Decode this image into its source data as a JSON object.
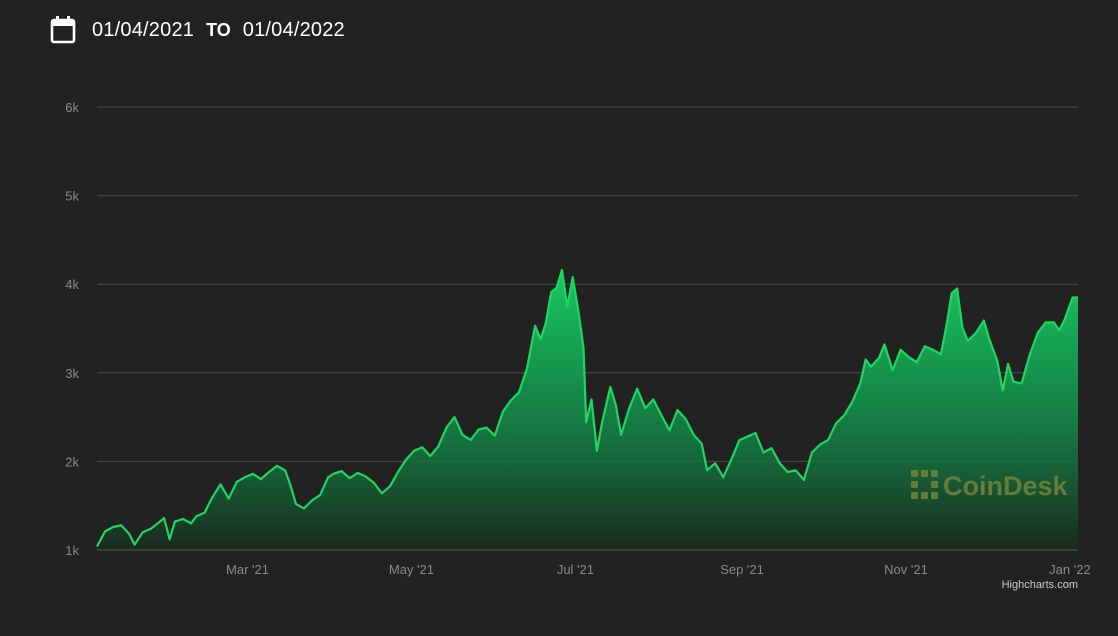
{
  "date_range": {
    "start": "01/04/2021",
    "to_label": "TO",
    "end": "01/04/2022"
  },
  "icons": {
    "calendar": "calendar-icon",
    "watermark_logo": "coindesk-logo-icon"
  },
  "watermark": {
    "text": "CoinDesk"
  },
  "credit": "Highcharts.com",
  "colors": {
    "background": "#222222",
    "line": "#1ed760",
    "area_top": "#17c964",
    "area_bottom": "#1a2a1e",
    "grid": "#4a4a4a",
    "tick": "#8a8a8a"
  },
  "chart_data": {
    "type": "area",
    "title": "",
    "xlabel": "",
    "ylabel": "",
    "x_range": [
      "2021-01-04",
      "2022-01-04"
    ],
    "ylim": [
      1000,
      6000
    ],
    "y_ticks": [
      1000,
      2000,
      3000,
      4000,
      5000,
      6000
    ],
    "y_tick_labels": [
      "1k",
      "2k",
      "3k",
      "4k",
      "5k",
      "6k"
    ],
    "x_ticks": [
      "2021-03-01",
      "2021-05-01",
      "2021-07-01",
      "2021-09-01",
      "2021-11-01",
      "2022-01-01"
    ],
    "x_tick_labels": [
      "Mar '21",
      "May '21",
      "Jul '21",
      "Sep '21",
      "Nov '21",
      "Jan '22"
    ],
    "grid": true,
    "legend": "none",
    "series": [
      {
        "points": [
          [
            "2021-01-04",
            1040
          ],
          [
            "2021-01-07",
            1210
          ],
          [
            "2021-01-10",
            1260
          ],
          [
            "2021-01-13",
            1280
          ],
          [
            "2021-01-16",
            1180
          ],
          [
            "2021-01-18",
            1060
          ],
          [
            "2021-01-21",
            1200
          ],
          [
            "2021-01-24",
            1240
          ],
          [
            "2021-01-27",
            1310
          ],
          [
            "2021-01-29",
            1360
          ],
          [
            "2021-01-31",
            1120
          ],
          [
            "2021-02-02",
            1320
          ],
          [
            "2021-02-05",
            1350
          ],
          [
            "2021-02-08",
            1300
          ],
          [
            "2021-02-10",
            1380
          ],
          [
            "2021-02-13",
            1420
          ],
          [
            "2021-02-16",
            1600
          ],
          [
            "2021-02-19",
            1740
          ],
          [
            "2021-02-22",
            1580
          ],
          [
            "2021-02-25",
            1770
          ],
          [
            "2021-02-28",
            1820
          ],
          [
            "2021-03-03",
            1860
          ],
          [
            "2021-03-06",
            1800
          ],
          [
            "2021-03-09",
            1880
          ],
          [
            "2021-03-12",
            1950
          ],
          [
            "2021-03-15",
            1900
          ],
          [
            "2021-03-17",
            1730
          ],
          [
            "2021-03-19",
            1520
          ],
          [
            "2021-03-22",
            1470
          ],
          [
            "2021-03-25",
            1560
          ],
          [
            "2021-03-28",
            1620
          ],
          [
            "2021-03-31",
            1820
          ],
          [
            "2021-04-02",
            1860
          ],
          [
            "2021-04-05",
            1890
          ],
          [
            "2021-04-08",
            1810
          ],
          [
            "2021-04-11",
            1870
          ],
          [
            "2021-04-14",
            1830
          ],
          [
            "2021-04-17",
            1760
          ],
          [
            "2021-04-20",
            1640
          ],
          [
            "2021-04-23",
            1720
          ],
          [
            "2021-04-26",
            1880
          ],
          [
            "2021-04-29",
            2020
          ],
          [
            "2021-05-02",
            2120
          ],
          [
            "2021-05-05",
            2160
          ],
          [
            "2021-05-08",
            2060
          ],
          [
            "2021-05-11",
            2170
          ],
          [
            "2021-05-14",
            2380
          ],
          [
            "2021-05-17",
            2500
          ],
          [
            "2021-05-20",
            2300
          ],
          [
            "2021-05-23",
            2240
          ],
          [
            "2021-05-26",
            2360
          ],
          [
            "2021-05-29",
            2380
          ],
          [
            "2021-06-01",
            2290
          ],
          [
            "2021-06-04",
            2560
          ],
          [
            "2021-06-07",
            2690
          ],
          [
            "2021-06-10",
            2780
          ],
          [
            "2021-06-13",
            3050
          ],
          [
            "2021-06-16",
            3530
          ],
          [
            "2021-06-18",
            3380
          ],
          [
            "2021-06-20",
            3560
          ],
          [
            "2021-06-22",
            3910
          ],
          [
            "2021-06-24",
            3960
          ],
          [
            "2021-06-26",
            4160
          ],
          [
            "2021-06-28",
            3750
          ],
          [
            "2021-06-30",
            4080
          ],
          [
            "2021-07-02",
            3720
          ],
          [
            "2021-07-04",
            3280
          ],
          [
            "2021-07-05",
            2440
          ],
          [
            "2021-07-07",
            2700
          ],
          [
            "2021-07-09",
            2120
          ],
          [
            "2021-07-11",
            2450
          ],
          [
            "2021-07-14",
            2840
          ],
          [
            "2021-07-16",
            2640
          ],
          [
            "2021-07-18",
            2300
          ],
          [
            "2021-07-21",
            2600
          ],
          [
            "2021-07-24",
            2820
          ],
          [
            "2021-07-27",
            2600
          ],
          [
            "2021-07-30",
            2700
          ],
          [
            "2021-08-02",
            2520
          ],
          [
            "2021-08-05",
            2350
          ],
          [
            "2021-08-08",
            2580
          ],
          [
            "2021-08-11",
            2480
          ],
          [
            "2021-08-14",
            2300
          ],
          [
            "2021-08-17",
            2200
          ],
          [
            "2021-08-19",
            1900
          ],
          [
            "2021-08-22",
            1980
          ],
          [
            "2021-08-25",
            1820
          ],
          [
            "2021-08-28",
            2020
          ],
          [
            "2021-08-31",
            2240
          ],
          [
            "2021-09-03",
            2280
          ],
          [
            "2021-09-06",
            2320
          ],
          [
            "2021-09-09",
            2100
          ],
          [
            "2021-09-12",
            2150
          ],
          [
            "2021-09-15",
            1980
          ],
          [
            "2021-09-18",
            1880
          ],
          [
            "2021-09-21",
            1900
          ],
          [
            "2021-09-24",
            1790
          ],
          [
            "2021-09-27",
            2100
          ],
          [
            "2021-09-30",
            2190
          ],
          [
            "2021-10-03",
            2240
          ],
          [
            "2021-10-06",
            2430
          ],
          [
            "2021-10-09",
            2520
          ],
          [
            "2021-10-12",
            2670
          ],
          [
            "2021-10-15",
            2880
          ],
          [
            "2021-10-17",
            3150
          ],
          [
            "2021-10-19",
            3070
          ],
          [
            "2021-10-22",
            3170
          ],
          [
            "2021-10-24",
            3320
          ],
          [
            "2021-10-27",
            3030
          ],
          [
            "2021-10-30",
            3260
          ],
          [
            "2021-11-02",
            3180
          ],
          [
            "2021-11-05",
            3120
          ],
          [
            "2021-11-08",
            3300
          ],
          [
            "2021-11-11",
            3260
          ],
          [
            "2021-11-14",
            3210
          ],
          [
            "2021-11-16",
            3520
          ],
          [
            "2021-11-18",
            3900
          ],
          [
            "2021-11-20",
            3950
          ],
          [
            "2021-11-22",
            3510
          ],
          [
            "2021-11-24",
            3360
          ],
          [
            "2021-11-27",
            3450
          ],
          [
            "2021-11-30",
            3590
          ],
          [
            "2021-12-02",
            3380
          ],
          [
            "2021-12-05",
            3130
          ],
          [
            "2021-12-07",
            2800
          ],
          [
            "2021-12-09",
            3100
          ],
          [
            "2021-12-11",
            2900
          ],
          [
            "2021-12-14",
            2880
          ],
          [
            "2021-12-17",
            3200
          ],
          [
            "2021-12-20",
            3450
          ],
          [
            "2021-12-23",
            3570
          ],
          [
            "2021-12-26",
            3570
          ],
          [
            "2021-12-28",
            3480
          ],
          [
            "2021-12-30",
            3600
          ],
          [
            "2022-01-02",
            3850
          ],
          [
            "2022-01-04",
            3850
          ]
        ]
      }
    ]
  }
}
